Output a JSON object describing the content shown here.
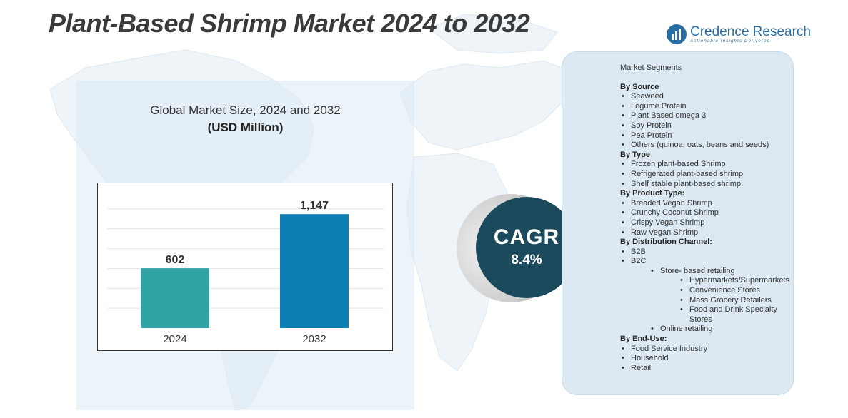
{
  "title": "Plant-Based Shrimp Market 2024 to 2032",
  "logo": {
    "name": "Credence Research",
    "tagline": "Actionable Insights Delivered"
  },
  "chart_panel": {
    "title": "Global Market Size, 2024 and 2032",
    "unit": "(USD Million)"
  },
  "chart_data": {
    "type": "bar",
    "title": "Global Market Size, 2024 and 2032",
    "ylabel": "(USD Million)",
    "categories": [
      "2024",
      "2032"
    ],
    "values": [
      602,
      1147
    ],
    "value_labels": [
      "602",
      "1,147"
    ],
    "colors": [
      "#2fa3a3",
      "#0d7fb5"
    ],
    "ylim": [
      0,
      1400
    ],
    "grid": true
  },
  "cagr": {
    "label": "CAGR",
    "value": "8.4%"
  },
  "segments": {
    "heading": "Market Segments",
    "source": {
      "label": "By Source",
      "items": [
        "Seaweed",
        "Legume Protein",
        "Plant Based omega 3",
        "Soy Protein",
        "Pea Protein",
        "Others (quinoa, oats, beans and seeds)"
      ]
    },
    "type": {
      "label": "By Type",
      "items": [
        "Frozen plant-based Shrimp",
        "Refrigerated plant-based shrimp",
        "Shelf stable plant-based shrimp"
      ]
    },
    "product_type": {
      "label": "By Product Type:",
      "items": [
        "Breaded Vegan Shrimp",
        "Crunchy Coconut Shrimp",
        "Crispy Vegan Shrimp",
        "Raw Vegan Shrimp"
      ]
    },
    "distribution": {
      "label": "By Distribution Channel:",
      "b2b": "B2B",
      "b2c": "B2C",
      "store_based": "Store- based retailing",
      "store_items": [
        "Hypermarkets/Supermarkets",
        "Convenience Stores",
        "Mass Grocery Retailers",
        "Food and Drink Specialty Stores"
      ],
      "online": "Online retailing"
    },
    "end_use": {
      "label": "By End-Use:",
      "items": [
        "Food Service Industry",
        "Household",
        "Retail"
      ]
    }
  }
}
